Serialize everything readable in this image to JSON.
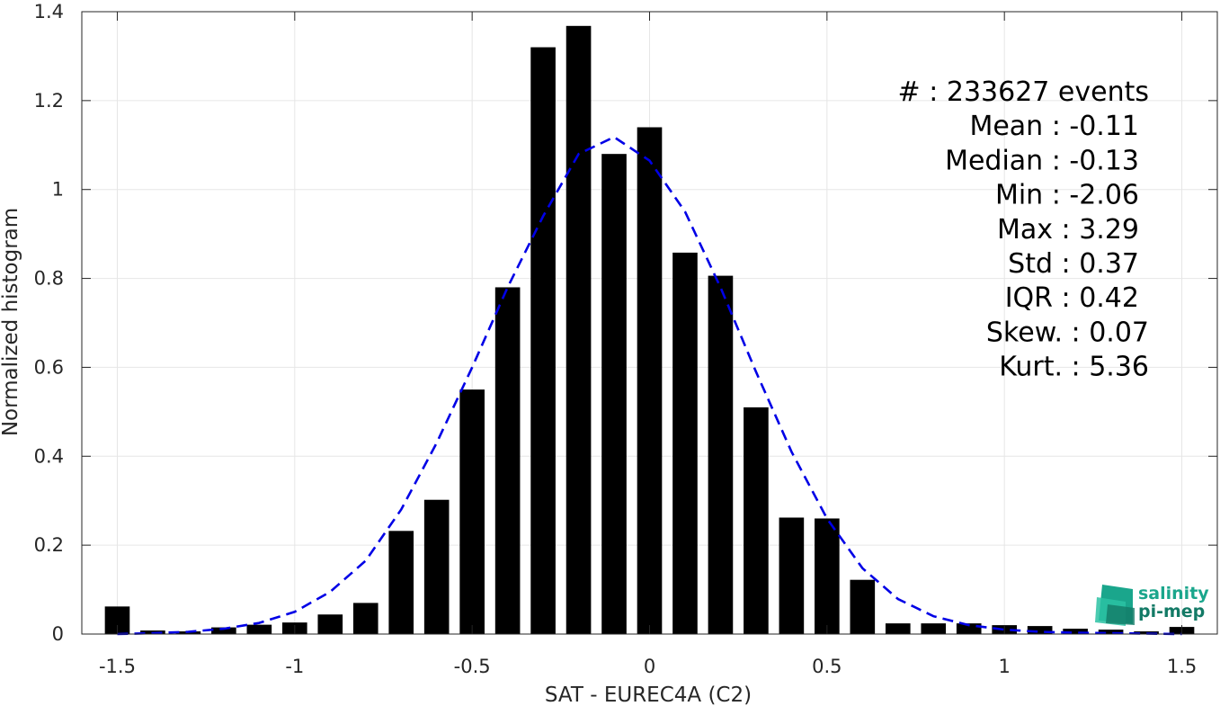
{
  "chart_data": {
    "type": "bar",
    "xlabel": "SAT - EUREC4A (C2)",
    "ylabel": "Normalized histogram",
    "xlim": [
      -1.6,
      1.6
    ],
    "ylim": [
      0,
      1.4
    ],
    "x_ticks": [
      -1.5,
      -1,
      -0.5,
      0,
      0.5,
      1,
      1.5
    ],
    "x_tick_labels": [
      "-1.5",
      "-1",
      "-0.5",
      "0",
      "0.5",
      "1",
      "1.5"
    ],
    "y_ticks": [
      0,
      0.2,
      0.4,
      0.6,
      0.8,
      1,
      1.2,
      1.4
    ],
    "y_tick_labels": [
      "0",
      "0.2",
      "0.4",
      "0.6",
      "0.8",
      "1",
      "1.2",
      "1.4"
    ],
    "grid": true,
    "bar_width": 0.07,
    "x": [
      -1.5,
      -1.4,
      -1.3,
      -1.2,
      -1.1,
      -1.0,
      -0.9,
      -0.8,
      -0.7,
      -0.6,
      -0.5,
      -0.4,
      -0.3,
      -0.2,
      -0.1,
      0.0,
      0.1,
      0.2,
      0.3,
      0.4,
      0.5,
      0.6,
      0.7,
      0.8,
      0.9,
      1.0,
      1.1,
      1.2,
      1.3,
      1.4,
      1.5
    ],
    "values": [
      0.062,
      0.008,
      0.006,
      0.015,
      0.021,
      0.026,
      0.044,
      0.07,
      0.232,
      0.302,
      0.55,
      0.78,
      1.32,
      1.368,
      1.08,
      1.14,
      0.858,
      0.806,
      0.51,
      0.262,
      0.26,
      0.122,
      0.024,
      0.024,
      0.024,
      0.02,
      0.018,
      0.012,
      0.01,
      0.006,
      0.016
    ],
    "bar_color": "#000000",
    "fit": {
      "style": "dashed",
      "color": "#0000e6",
      "x": [
        -1.5,
        -1.4,
        -1.3,
        -1.2,
        -1.1,
        -1.0,
        -0.9,
        -0.8,
        -0.7,
        -0.6,
        -0.5,
        -0.4,
        -0.3,
        -0.2,
        -0.1,
        0.0,
        0.1,
        0.2,
        0.3,
        0.4,
        0.5,
        0.6,
        0.7,
        0.8,
        0.9,
        1.0,
        1.1,
        1.2,
        1.3,
        1.4,
        1.5
      ],
      "y": [
        0.0,
        0.002,
        0.005,
        0.012,
        0.025,
        0.05,
        0.095,
        0.165,
        0.28,
        0.43,
        0.6,
        0.78,
        0.94,
        1.08,
        1.118,
        1.065,
        0.95,
        0.78,
        0.59,
        0.41,
        0.26,
        0.148,
        0.079,
        0.04,
        0.02,
        0.01,
        0.005,
        0.003,
        0.002,
        0.001,
        0.0
      ]
    }
  },
  "stats": [
    "#  : 233627 events",
    "Mean : -0.11",
    "Median : -0.13",
    "Min : -2.06",
    "Max : 3.29",
    "Std : 0.37",
    "IQR : 0.42",
    "Skew. : 0.07",
    "Kurt. : 5.36"
  ],
  "logo": {
    "line1": "salinity",
    "line2": "pi-mep",
    "color1": "#1aa68c",
    "color2": "#137a66"
  }
}
